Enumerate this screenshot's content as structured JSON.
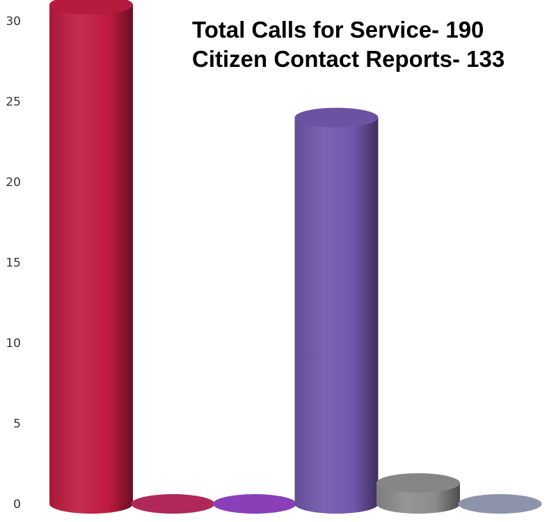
{
  "chart_data": {
    "type": "bar",
    "style": "3d-cylinder",
    "title_lines": [
      "Total Calls for Service- 190",
      "Citizen Contact Reports- 133"
    ],
    "xlabel": "",
    "ylabel": "",
    "ylim": [
      0,
      30
    ],
    "yticks": [
      "0",
      "5",
      "10",
      "15",
      "20",
      "25",
      "30"
    ],
    "grid": false,
    "legend": "none",
    "values": [
      31,
      0,
      0,
      24,
      1.3,
      0
    ],
    "colors": [
      "#c01b40",
      "#b0285a",
      "#8a3fb8",
      "#7256ac",
      "#8d8d8d",
      "#8c93ab"
    ]
  }
}
